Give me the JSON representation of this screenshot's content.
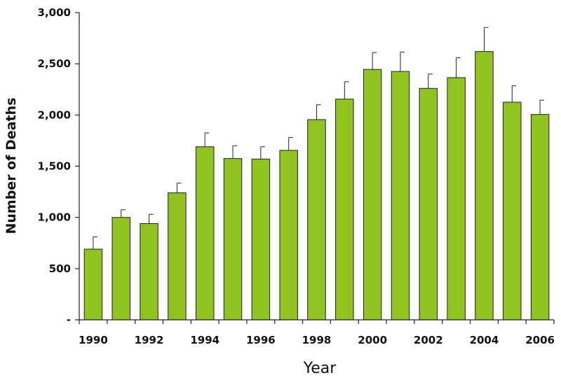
{
  "chart_data": {
    "type": "bar",
    "title": "",
    "xlabel": "Year",
    "ylabel": "Number of Deaths",
    "ylim": [
      0,
      3000
    ],
    "yticks": [
      0,
      500,
      1000,
      1500,
      2000,
      2500,
      3000
    ],
    "ytick_labels": [
      "-",
      "500",
      "1,000",
      "1,500",
      "2,000",
      "2,500",
      "3,000"
    ],
    "categories": [
      "1990",
      "1991",
      "1992",
      "1993",
      "1994",
      "1995",
      "1996",
      "1997",
      "1998",
      "1999",
      "2000",
      "2001",
      "2002",
      "2003",
      "2004",
      "2005",
      "2006"
    ],
    "xtick_labels": [
      "1990",
      "",
      "1992",
      "",
      "1994",
      "",
      "1996",
      "",
      "1998",
      "",
      "2000",
      "",
      "2002",
      "",
      "2004",
      "",
      "2006"
    ],
    "values": [
      690,
      1000,
      940,
      1240,
      1690,
      1575,
      1570,
      1655,
      1955,
      2155,
      2445,
      2425,
      2260,
      2365,
      2620,
      2125,
      2005
    ],
    "error_upper": [
      120,
      75,
      90,
      95,
      135,
      125,
      120,
      125,
      145,
      170,
      165,
      190,
      140,
      195,
      235,
      160,
      140
    ],
    "bar_color": "#8fc31f",
    "grid": false,
    "legend": "none"
  }
}
